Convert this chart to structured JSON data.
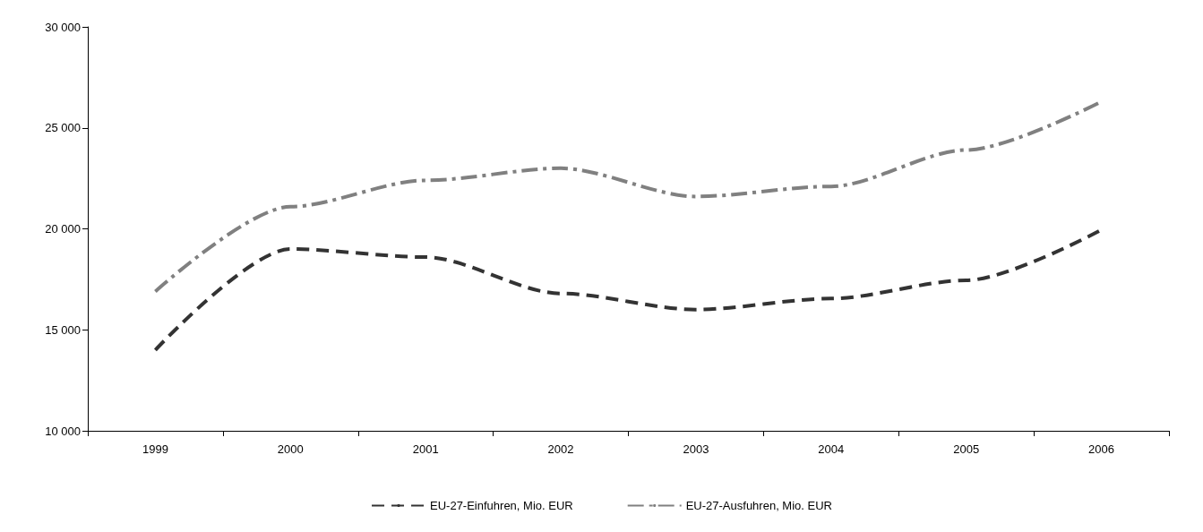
{
  "chart_data": {
    "type": "line",
    "categories": [
      "1999",
      "2000",
      "2001",
      "2002",
      "2003",
      "2004",
      "2005",
      "2006"
    ],
    "series": [
      {
        "name": "EU-27-Einfuhren, Mio. EUR",
        "color": "#333333",
        "line_style": "dashed",
        "values": [
          14000,
          19000,
          18600,
          16800,
          16000,
          16550,
          17450,
          19950
        ]
      },
      {
        "name": "EU-27-Ausfuhren, Mio. EUR",
        "color": "#808080",
        "line_style": "dashdot",
        "values": [
          16900,
          21100,
          22400,
          23000,
          21600,
          22100,
          23900,
          26300
        ]
      }
    ],
    "ylim": [
      10000,
      30000
    ],
    "yticks": [
      {
        "value": 10000,
        "label": "10 000"
      },
      {
        "value": 15000,
        "label": "15 000"
      },
      {
        "value": 20000,
        "label": "20 000"
      },
      {
        "value": 25000,
        "label": "25 000"
      },
      {
        "value": 30000,
        "label": "30 000"
      }
    ],
    "grid": false,
    "legend": "bottom",
    "marker": "none"
  }
}
